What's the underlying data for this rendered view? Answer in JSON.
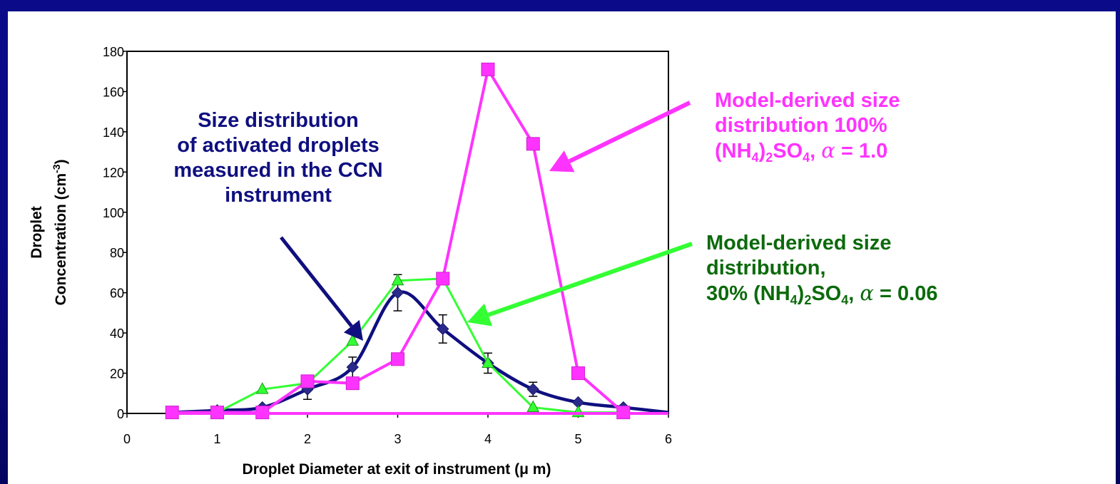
{
  "colors": {
    "background": "#0a0a80",
    "measured": "#0f0f80",
    "magenta": "#ff33ff",
    "green_series": "#33ff33",
    "green_text": "#0c6a0c"
  },
  "chart_data": {
    "type": "line",
    "xlabel": "Droplet Diameter at exit of instrument (μ m)",
    "ylabel_line1": "Droplet",
    "ylabel_line2": "Concentration (cm",
    "ylabel_sup": "-3",
    "ylabel_end": ")",
    "xlim": [
      0,
      6
    ],
    "ylim": [
      0,
      180
    ],
    "x_ticks": [
      "0",
      "1",
      "2",
      "3",
      "4",
      "5",
      "6"
    ],
    "y_ticks": [
      "0",
      "20",
      "40",
      "60",
      "80",
      "100",
      "120",
      "140",
      "160",
      "180"
    ],
    "grid": false,
    "series": [
      {
        "key": "measured",
        "marker": "diamond",
        "smooth": true,
        "x": [
          0.5,
          1.0,
          1.5,
          2.0,
          2.5,
          3.0,
          3.5,
          4.0,
          4.5,
          5.0,
          5.5,
          6.0
        ],
        "y": [
          0.5,
          1.5,
          3,
          12,
          23,
          60,
          42,
          25,
          12,
          5.5,
          3,
          0.5
        ],
        "error": [
          0,
          0,
          0,
          5,
          5,
          9,
          7,
          5,
          3.5,
          0,
          0,
          0
        ],
        "marker_shown": [
          true,
          true,
          true,
          true,
          true,
          true,
          true,
          true,
          true,
          true,
          true,
          false
        ]
      },
      {
        "key": "green",
        "marker": "triangle",
        "x": [
          0.5,
          1.0,
          1.5,
          2.0,
          2.5,
          3.0,
          3.5,
          4.0,
          4.5,
          5.0,
          5.5
        ],
        "y": [
          0.5,
          0.5,
          12,
          15,
          36,
          66,
          67,
          25,
          3,
          0.5,
          0.5
        ]
      },
      {
        "key": "magenta",
        "marker": "square",
        "x": [
          0.5,
          1.0,
          1.5,
          2.0,
          2.5,
          3.0,
          3.5,
          4.0,
          4.5,
          5.0,
          5.5
        ],
        "y": [
          0.5,
          0.5,
          0.5,
          16,
          15,
          27,
          67,
          171,
          134,
          20,
          0.5
        ]
      },
      {
        "key": "magenta_baseline",
        "marker": "none",
        "x": [
          0.5,
          6.0
        ],
        "y": [
          0,
          0
        ]
      }
    ]
  },
  "annotations": {
    "measured": [
      "Size distribution",
      "of activated droplets",
      "measured in the CCN",
      "instrument"
    ],
    "magenta_line1": "Model-derived size",
    "magenta_line2": "distribution 100%",
    "magenta_line3_a": "(NH",
    "magenta_line3_sub1": "4",
    "magenta_line3_b": ")",
    "magenta_line3_sub2": "2",
    "magenta_line3_c": "SO",
    "magenta_line3_sub3": "4",
    "magenta_line3_d": ", ",
    "magenta_alpha": "α",
    "magenta_line3_e": " = 1.0",
    "green_line1": "Model-derived size",
    "green_line2": "distribution,",
    "green_line3_a": "30% (NH",
    "green_line3_sub1": "4",
    "green_line3_b": ")",
    "green_line3_sub2": "2",
    "green_line3_c": "SO",
    "green_line3_sub3": "4",
    "green_line3_d": ", ",
    "green_alpha": "α",
    "green_line3_e": " = 0.06"
  }
}
